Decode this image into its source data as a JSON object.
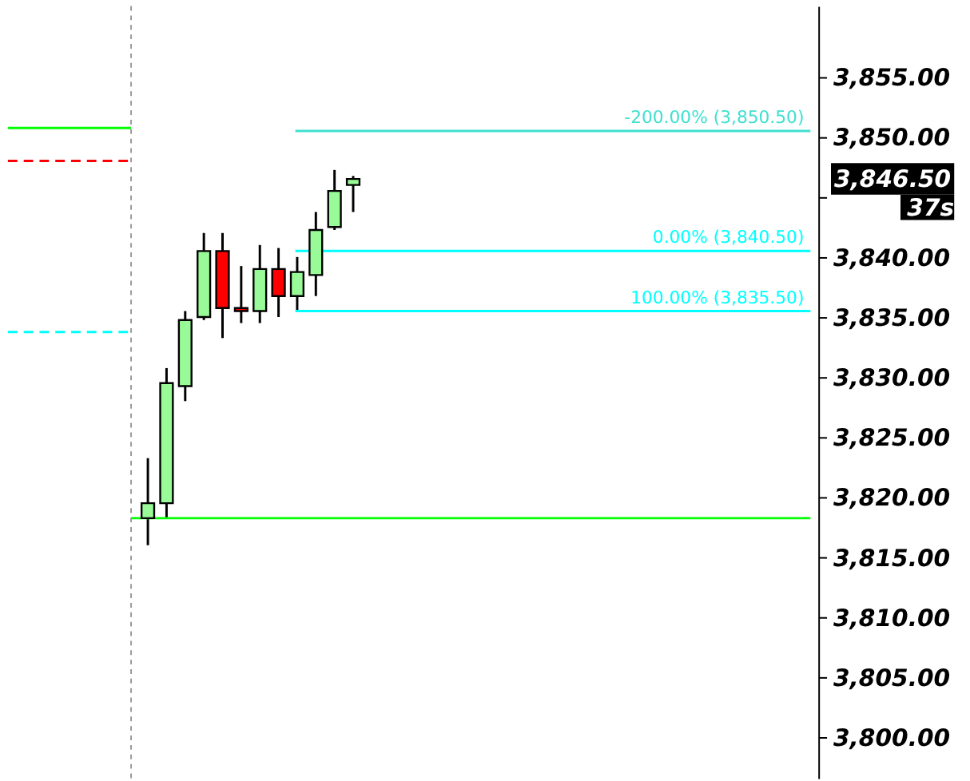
{
  "chart_data": {
    "type": "candlestick",
    "categories": [
      null,
      null,
      null,
      null,
      null,
      null,
      null,
      null,
      null,
      null,
      null,
      null,
      null,
      null,
      null,
      null,
      null,
      null,
      null,
      null,
      null,
      null,
      null,
      null,
      null,
      null,
      null,
      null,
      null,
      null,
      null,
      null,
      null,
      null,
      null,
      null,
      null,
      null,
      null,
      null,
      null,
      null,
      null
    ],
    "ohlc": [
      null,
      null,
      null,
      null,
      null,
      null,
      null,
      [
        3818.25,
        3823.25,
        3816,
        3819.5
      ],
      [
        3819.5,
        3830.75,
        3818.25,
        3829.5
      ],
      [
        3829.25,
        3835.5,
        3828,
        3834.75
      ],
      [
        3835,
        3842,
        3834.75,
        3840.5
      ],
      [
        3840.5,
        3842,
        3833.25,
        3835.75
      ],
      [
        3835.75,
        3839.25,
        3834.5,
        3835.5
      ],
      [
        3835.5,
        3841,
        3834.5,
        3839
      ],
      [
        3839,
        3840.75,
        3835,
        3836.75
      ],
      [
        3836.75,
        3840,
        3835.5,
        3838.75
      ],
      [
        3838.5,
        3843.75,
        3836.75,
        3842.25
      ],
      [
        3842.5,
        3847.25,
        3842.25,
        3845.5
      ],
      [
        3846,
        3846.75,
        3843.75,
        3846.5
      ],
      null,
      null,
      null,
      null,
      null,
      null,
      null,
      null,
      null,
      null,
      null,
      null,
      null,
      null,
      null,
      null,
      null,
      null,
      null,
      null,
      null,
      null,
      null,
      null
    ],
    "colors": [
      null,
      null,
      null,
      null,
      null,
      null,
      null,
      "#98fb98",
      "#98fb98",
      "#98fb98",
      "#98fb98",
      "#ff0000",
      "#ff0000",
      "#98fb98",
      "#ff0000",
      "#98fb98",
      "#98fb98",
      "#98fb98",
      "#98fb98",
      null,
      null,
      null,
      null,
      null,
      null,
      null,
      null,
      null,
      null,
      null,
      null,
      null,
      null,
      null,
      null,
      null,
      null,
      null,
      null,
      null,
      null,
      null,
      null
    ],
    "ylim": [
      3796.6,
      3860.9
    ],
    "yticks": [
      {
        "value": 3800,
        "label": "3,800.00"
      },
      {
        "value": 3805,
        "label": "3,805.00"
      },
      {
        "value": 3810,
        "label": "3,810.00"
      },
      {
        "value": 3815,
        "label": "3,815.00"
      },
      {
        "value": 3820,
        "label": "3,820.00"
      },
      {
        "value": 3825,
        "label": "3,825.00"
      },
      {
        "value": 3830,
        "label": "3,830.00"
      },
      {
        "value": 3835,
        "label": "3,835.00"
      },
      {
        "value": 3840,
        "label": "3,840.00"
      },
      {
        "value": 3845,
        "label": null
      },
      {
        "value": 3850,
        "label": "3,850.00"
      },
      {
        "value": 3855,
        "label": "3,855.00"
      }
    ],
    "ref_lines": [
      {
        "axis": "y",
        "value": 3850.75,
        "color": "#00ff00",
        "line_style": "solid"
      },
      {
        "axis": "y",
        "value": 3848,
        "color": "#ff0000",
        "line_style": "dashed"
      },
      {
        "axis": "y",
        "value": 3833.75,
        "color": "#00ffff",
        "line_style": "dashed"
      },
      {
        "axis": "y",
        "value": 3818.25,
        "color": "#00ff00",
        "line_style": "solid"
      },
      {
        "axis": "y",
        "value": 3850.5,
        "label": "-200.00% (3,850.50)",
        "color": "#40e0d0",
        "line_style": "solid"
      },
      {
        "axis": "y",
        "value": 3840.5,
        "label": "0.00% (3,840.50)",
        "color": "#00ffff",
        "line_style": "solid"
      },
      {
        "axis": "y",
        "value": 3835.5,
        "label": "100.00% (3,835.50)",
        "color": "#00ffff",
        "line_style": "solid"
      }
    ],
    "annotations": [
      "3,846.50",
      "37s"
    ],
    "grid": false,
    "tick_labels": "y"
  }
}
